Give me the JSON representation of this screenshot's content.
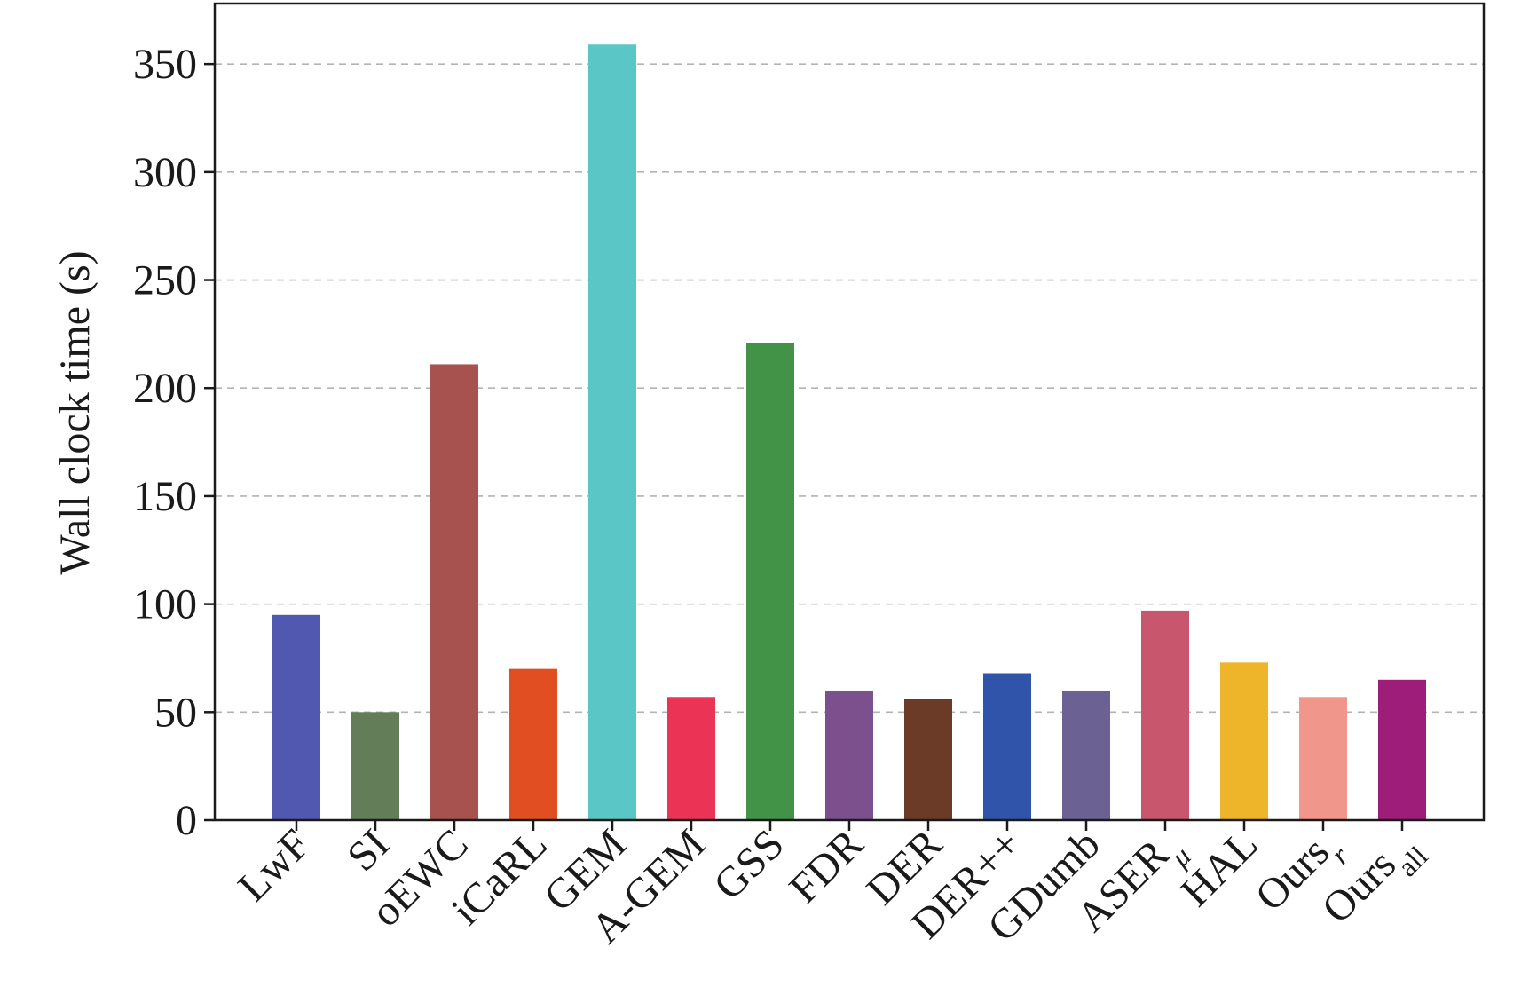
{
  "chart_data": {
    "type": "bar",
    "title": "",
    "xlabel": "",
    "ylabel": "Wall clock time (s)",
    "ylim": [
      0,
      378
    ],
    "yticks": [
      0,
      50,
      100,
      150,
      200,
      250,
      300,
      350
    ],
    "grid": "horizontal dashed",
    "legend": "none",
    "categories": [
      {
        "label": "LwF",
        "sub": "",
        "subStyle": "",
        "value": 95,
        "color": "#5058b0"
      },
      {
        "label": "SI",
        "sub": "",
        "subStyle": "",
        "value": 50,
        "color": "#627d57"
      },
      {
        "label": "oEWC",
        "sub": "",
        "subStyle": "",
        "value": 211,
        "color": "#a8524f"
      },
      {
        "label": "iCaRL",
        "sub": "",
        "subStyle": "",
        "value": 70,
        "color": "#e04e22"
      },
      {
        "label": "GEM",
        "sub": "",
        "subStyle": "",
        "value": 359,
        "color": "#5ac6c6"
      },
      {
        "label": "A-GEM",
        "sub": "",
        "subStyle": "",
        "value": 57,
        "color": "#eb3355"
      },
      {
        "label": "GSS",
        "sub": "",
        "subStyle": "",
        "value": 221,
        "color": "#429248"
      },
      {
        "label": "FDR",
        "sub": "",
        "subStyle": "",
        "value": 60,
        "color": "#7b508c"
      },
      {
        "label": "DER",
        "sub": "",
        "subStyle": "",
        "value": 56,
        "color": "#6b3b28"
      },
      {
        "label": "DER++",
        "sub": "",
        "subStyle": "",
        "value": 68,
        "color": "#3154ab"
      },
      {
        "label": "GDumb",
        "sub": "",
        "subStyle": "",
        "value": 60,
        "color": "#6b6193"
      },
      {
        "label": "ASER",
        "sub": "μ",
        "subStyle": "italic",
        "value": 97,
        "color": "#c8566c"
      },
      {
        "label": "HAL",
        "sub": "",
        "subStyle": "",
        "value": 73,
        "color": "#eeb52a"
      },
      {
        "label": "Ours",
        "sub": "r",
        "subStyle": "italic",
        "value": 57,
        "color": "#f1968a"
      },
      {
        "label": "Ours",
        "sub": "all",
        "subStyle": "normal",
        "value": 65,
        "color": "#9e1d78"
      }
    ]
  }
}
